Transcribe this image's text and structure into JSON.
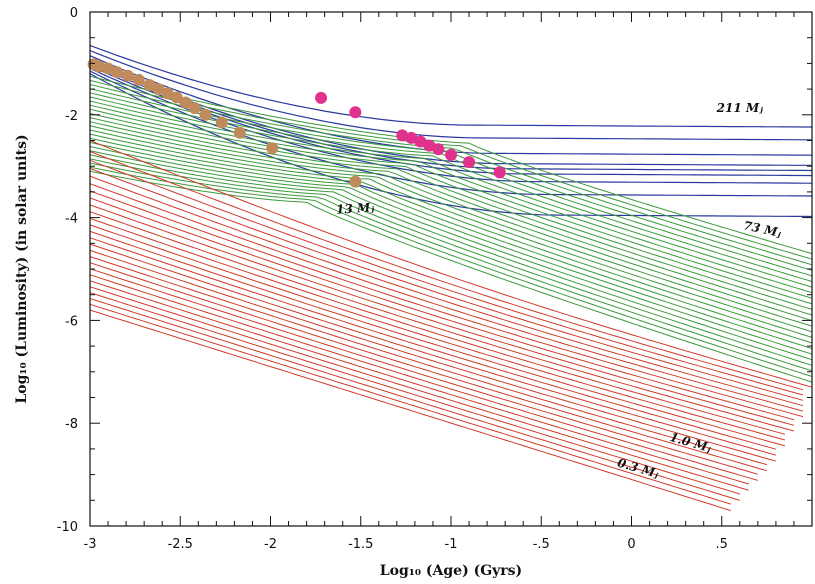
{
  "chart_data": {
    "type": "line",
    "title": "",
    "xlabel": "Log₁₀ (Age) (Gyrs)",
    "ylabel": "Log₁₀ (Luminosity) (in solar units)",
    "xlim": [
      -3,
      1
    ],
    "ylim": [
      -10,
      0
    ],
    "x_ticks": [
      -3,
      -2.5,
      -2,
      -1.5,
      -1,
      -0.5,
      0,
      0.5
    ],
    "x_tick_labels": [
      "-3",
      "-2.5",
      "-2",
      "-1.5",
      "-1",
      "-.5",
      "0",
      ".5"
    ],
    "y_ticks": [
      0,
      -2,
      -4,
      -6,
      -8,
      -10
    ],
    "y_tick_labels": [
      "0",
      "-2",
      "-4",
      "-6",
      "-8",
      "-10"
    ],
    "grid": false,
    "colors": {
      "blue": "#2b3a9e",
      "green": "#3c9a3c",
      "red": "#d23a2a",
      "pink": "#e0328c",
      "tan": "#c08a5a"
    },
    "annotations": [
      {
        "text": "211 Mⱼ",
        "x": 0.6,
        "y": -1.95
      },
      {
        "text": "73 Mⱼ",
        "x": 0.72,
        "y": -4.3
      },
      {
        "text": "13 Mⱼ",
        "x": -1.53,
        "y": -3.9
      },
      {
        "text": "1.0 Mⱼ",
        "x": 0.32,
        "y": -8.45
      },
      {
        "text": "0.3 Mⱼ",
        "x": 0.03,
        "y": -8.95
      }
    ],
    "series_groups": {
      "blue": {
        "count": 9,
        "y_start": [
          -0.65,
          -0.75,
          -0.85,
          -0.95,
          -1.0,
          -1.05,
          -1.1,
          -1.15,
          -1.2
        ],
        "y_end": [
          -2.2,
          -2.45,
          -2.75,
          -2.95,
          -3.05,
          -3.15,
          -3.3,
          -3.55,
          -3.95
        ]
      },
      "green": {
        "count": 24,
        "y_start_top": -1.25,
        "y_start_bottom": -3.1,
        "y_end_top": -4.7,
        "y_end_bottom": -7.2
      },
      "red": {
        "count": 26,
        "y_start_top": -2.5,
        "y_start_bottom": -5.8,
        "end_x_top": 1.0,
        "end_x_bottom": 0.55,
        "y_end_top": -7.3,
        "y_end_bottom": -9.7
      }
    },
    "scatter_pink": {
      "x": [
        -1.72,
        -1.53,
        -1.27,
        -1.22,
        -1.17,
        -1.12,
        -1.07,
        -1.0,
        -0.9,
        -0.73
      ],
      "y": [
        -1.67,
        -1.95,
        -2.4,
        -2.45,
        -2.52,
        -2.6,
        -2.67,
        -2.78,
        -2.92,
        -3.12
      ]
    },
    "scatter_tan": {
      "x": [
        -2.98,
        -2.95,
        -2.9,
        -2.85,
        -2.79,
        -2.73,
        -2.67,
        -2.62,
        -2.57,
        -2.52,
        -2.47,
        -2.42,
        -2.36,
        -2.27,
        -2.17,
        -1.99,
        -1.53
      ],
      "y": [
        -1.02,
        -1.06,
        -1.1,
        -1.17,
        -1.24,
        -1.32,
        -1.42,
        -1.5,
        -1.58,
        -1.66,
        -1.76,
        -1.87,
        -2.0,
        -2.15,
        -2.35,
        -2.65,
        -3.3
      ]
    }
  }
}
